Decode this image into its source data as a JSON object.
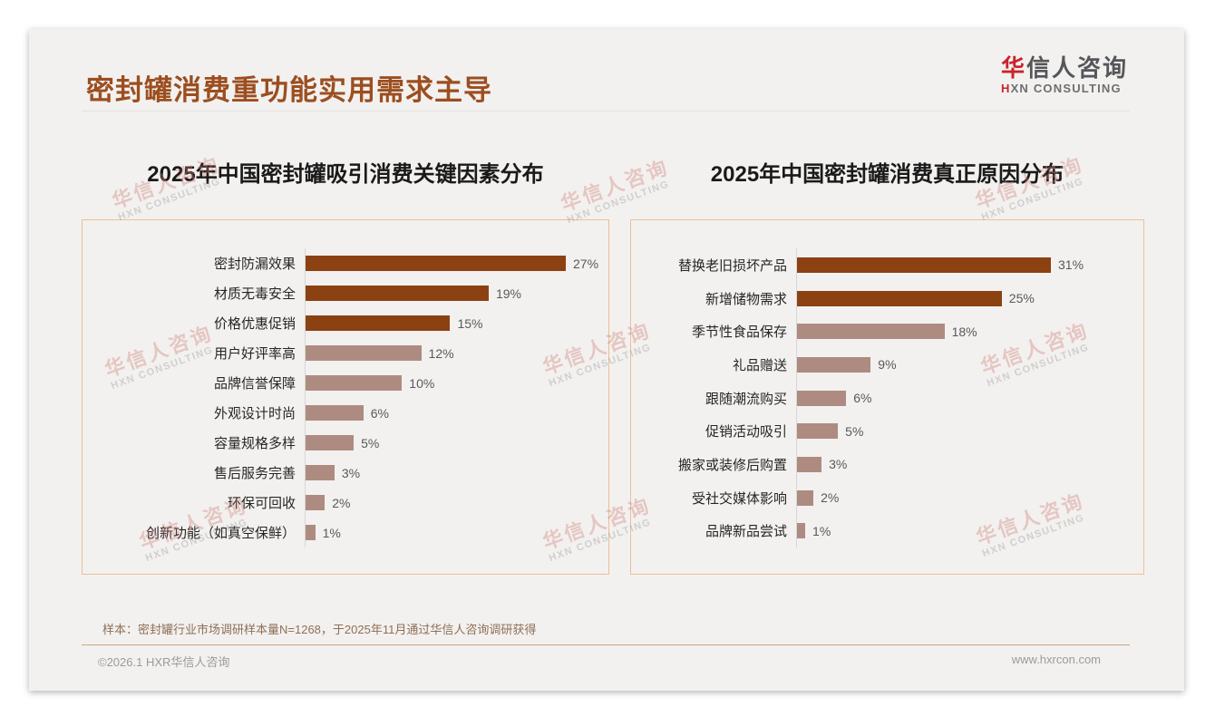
{
  "header": {
    "title": "密封罐消费重功能实用需求主导",
    "logo": {
      "cn_accent": "华",
      "cn_rest": "信人咨询",
      "en_accent": "H",
      "en_rest": "XN CONSULTING"
    }
  },
  "watermark": {
    "line1": "华信人咨询",
    "line2": "HXN CONSULTING"
  },
  "chart_data": [
    {
      "type": "bar",
      "orientation": "horizontal",
      "title": "2025年中国密封罐吸引消费关键因素分布",
      "categories": [
        "密封防漏效果",
        "材质无毒安全",
        "价格优惠促销",
        "用户好评率高",
        "品牌信誉保障",
        "外观设计时尚",
        "容量规格多样",
        "售后服务完善",
        "环保可回收",
        "创新功能（如真空保鲜）"
      ],
      "values": [
        27,
        19,
        15,
        12,
        10,
        6,
        5,
        3,
        2,
        1
      ],
      "unit": "%",
      "xlim": [
        0,
        27
      ],
      "dark_count": 3,
      "colors": {
        "dark": "#8C4112",
        "light": "#AE8B80"
      },
      "grid": false,
      "value_labels": "outside-end"
    },
    {
      "type": "bar",
      "orientation": "horizontal",
      "title": "2025年中国密封罐消费真正原因分布",
      "categories": [
        "替换老旧损坏产品",
        "新增储物需求",
        "季节性食品保存",
        "礼品赠送",
        "跟随潮流购买",
        "促销活动吸引",
        "搬家或装修后购置",
        "受社交媒体影响",
        "品牌新品尝试"
      ],
      "values": [
        31,
        25,
        18,
        9,
        6,
        5,
        3,
        2,
        1
      ],
      "unit": "%",
      "xlim": [
        0,
        31
      ],
      "dark_count": 2,
      "colors": {
        "dark": "#8C4112",
        "light": "#AE8B80"
      },
      "grid": false,
      "value_labels": "outside-end"
    }
  ],
  "footer": {
    "note": "样本：密封罐行业市场调研样本量N=1268，于2025年11月通过华信人咨询调研获得",
    "copyright": "©2026.1 HXR华信人咨询",
    "website": "www.hxrcon.com"
  }
}
